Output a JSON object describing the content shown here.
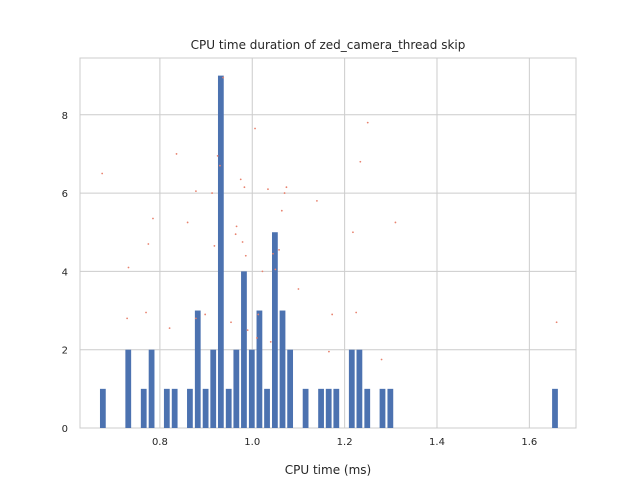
{
  "chart_data": {
    "type": "bar",
    "title": "CPU time duration of zed_camera_thread skip",
    "xlabel": "CPU time (ms)",
    "ylabel": "",
    "xlim": [
      0.627,
      1.701
    ],
    "ylim": [
      0,
      9.45
    ],
    "xticks": [
      0.8,
      1.0,
      1.2,
      1.4,
      1.6
    ],
    "xtick_labels": [
      "0.8",
      "1.0",
      "1.2",
      "1.4",
      "1.6"
    ],
    "yticks": [
      0,
      2,
      4,
      6,
      8
    ],
    "ytick_labels": [
      "0",
      "2",
      "4",
      "6",
      "8"
    ],
    "grid": true,
    "bar_color": "#4c72b0",
    "bar_width": 0.0125,
    "bars": [
      {
        "x": 0.6765,
        "y": 1
      },
      {
        "x": 0.7315,
        "y": 2
      },
      {
        "x": 0.765,
        "y": 1
      },
      {
        "x": 0.782,
        "y": 2
      },
      {
        "x": 0.815,
        "y": 1
      },
      {
        "x": 0.832,
        "y": 1
      },
      {
        "x": 0.865,
        "y": 1
      },
      {
        "x": 0.882,
        "y": 3
      },
      {
        "x": 0.899,
        "y": 1
      },
      {
        "x": 0.9155,
        "y": 2
      },
      {
        "x": 0.932,
        "y": 9
      },
      {
        "x": 0.949,
        "y": 1
      },
      {
        "x": 0.9655,
        "y": 2
      },
      {
        "x": 0.982,
        "y": 4
      },
      {
        "x": 0.999,
        "y": 2
      },
      {
        "x": 1.0155,
        "y": 3
      },
      {
        "x": 1.032,
        "y": 1
      },
      {
        "x": 1.049,
        "y": 5
      },
      {
        "x": 1.0655,
        "y": 3
      },
      {
        "x": 1.082,
        "y": 2
      },
      {
        "x": 1.1155,
        "y": 1
      },
      {
        "x": 1.149,
        "y": 1
      },
      {
        "x": 1.1655,
        "y": 1
      },
      {
        "x": 1.182,
        "y": 1
      },
      {
        "x": 1.2155,
        "y": 2
      },
      {
        "x": 1.232,
        "y": 2
      },
      {
        "x": 1.249,
        "y": 1
      },
      {
        "x": 1.282,
        "y": 1
      },
      {
        "x": 1.299,
        "y": 1
      },
      {
        "x": 1.6555,
        "y": 1
      }
    ],
    "scatter_color": "#e8826e",
    "scatter_points": [
      {
        "x": 0.675,
        "y": 6.5
      },
      {
        "x": 0.732,
        "y": 4.1
      },
      {
        "x": 0.729,
        "y": 2.8
      },
      {
        "x": 0.77,
        "y": 2.95
      },
      {
        "x": 0.775,
        "y": 4.7
      },
      {
        "x": 0.785,
        "y": 5.35
      },
      {
        "x": 0.821,
        "y": 2.55
      },
      {
        "x": 0.836,
        "y": 7.0
      },
      {
        "x": 0.86,
        "y": 5.25
      },
      {
        "x": 0.878,
        "y": 6.05
      },
      {
        "x": 0.878,
        "y": 2.8
      },
      {
        "x": 0.898,
        "y": 2.9
      },
      {
        "x": 0.913,
        "y": 6.0
      },
      {
        "x": 0.918,
        "y": 4.65
      },
      {
        "x": 0.925,
        "y": 6.95
      },
      {
        "x": 0.93,
        "y": 6.7
      },
      {
        "x": 0.937,
        "y": 8.95
      },
      {
        "x": 0.954,
        "y": 2.7
      },
      {
        "x": 0.966,
        "y": 5.15
      },
      {
        "x": 0.964,
        "y": 4.95
      },
      {
        "x": 0.975,
        "y": 6.35
      },
      {
        "x": 0.979,
        "y": 4.75
      },
      {
        "x": 0.983,
        "y": 6.15
      },
      {
        "x": 0.986,
        "y": 4.4
      },
      {
        "x": 0.99,
        "y": 2.5
      },
      {
        "x": 1.006,
        "y": 7.65
      },
      {
        "x": 1.01,
        "y": 2.3
      },
      {
        "x": 1.013,
        "y": 2.9
      },
      {
        "x": 1.022,
        "y": 4.0
      },
      {
        "x": 1.034,
        "y": 6.1
      },
      {
        "x": 1.04,
        "y": 2.2
      },
      {
        "x": 1.045,
        "y": 4.45
      },
      {
        "x": 1.05,
        "y": 4.05
      },
      {
        "x": 1.058,
        "y": 4.55
      },
      {
        "x": 1.064,
        "y": 5.55
      },
      {
        "x": 1.07,
        "y": 6.0
      },
      {
        "x": 1.074,
        "y": 6.15
      },
      {
        "x": 1.1,
        "y": 3.55
      },
      {
        "x": 1.14,
        "y": 5.8
      },
      {
        "x": 1.166,
        "y": 1.95
      },
      {
        "x": 1.173,
        "y": 2.9
      },
      {
        "x": 1.218,
        "y": 5.0
      },
      {
        "x": 1.225,
        "y": 2.95
      },
      {
        "x": 1.234,
        "y": 6.8
      },
      {
        "x": 1.25,
        "y": 7.8
      },
      {
        "x": 1.28,
        "y": 1.75
      },
      {
        "x": 1.31,
        "y": 5.25
      },
      {
        "x": 1.659,
        "y": 2.7
      }
    ]
  }
}
